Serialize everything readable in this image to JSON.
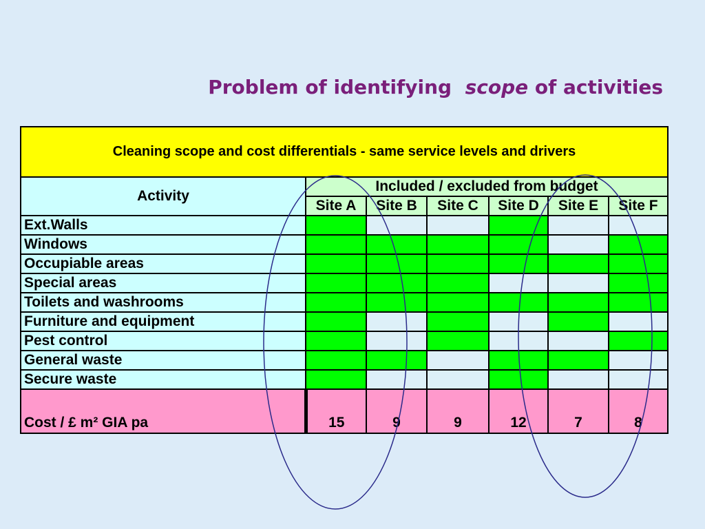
{
  "title": {
    "part1": "Problem of identifying",
    "emphasis": "scope",
    "part2": "of activities"
  },
  "table": {
    "caption": "Cleaning scope and cost differentials - same service levels and drivers",
    "activity_header": "Activity",
    "budget_header": "Included / excluded from budget",
    "sites": [
      "Site A",
      "Site B",
      "Site C",
      "Site D",
      "Site E",
      "Site F"
    ],
    "rows": [
      {
        "activity": "Ext.Walls",
        "included": [
          1,
          0,
          0,
          1,
          0,
          0
        ]
      },
      {
        "activity": "Windows",
        "included": [
          1,
          1,
          1,
          1,
          0,
          1
        ]
      },
      {
        "activity": "Occupiable areas",
        "included": [
          1,
          1,
          1,
          1,
          1,
          1
        ]
      },
      {
        "activity": "Special areas",
        "included": [
          1,
          1,
          1,
          0,
          0,
          1
        ]
      },
      {
        "activity": "Toilets and washrooms",
        "included": [
          1,
          1,
          1,
          1,
          1,
          1
        ]
      },
      {
        "activity": "Furniture and equipment",
        "included": [
          1,
          0,
          1,
          0,
          1,
          0
        ]
      },
      {
        "activity": "Pest control",
        "included": [
          1,
          0,
          1,
          0,
          0,
          1
        ]
      },
      {
        "activity": "General waste",
        "included": [
          1,
          1,
          0,
          1,
          1,
          0
        ]
      },
      {
        "activity": "Secure waste",
        "included": [
          1,
          0,
          0,
          1,
          0,
          0
        ]
      }
    ],
    "cost_label": "Cost / £ m² GIA pa",
    "costs": [
      "15",
      "9",
      "9",
      "12",
      "7",
      "8"
    ]
  },
  "colors": {
    "included": "#00ff00",
    "excluded": "#ddf0f8",
    "title": "#7a1f7a",
    "oval": "#2a2a8a"
  }
}
